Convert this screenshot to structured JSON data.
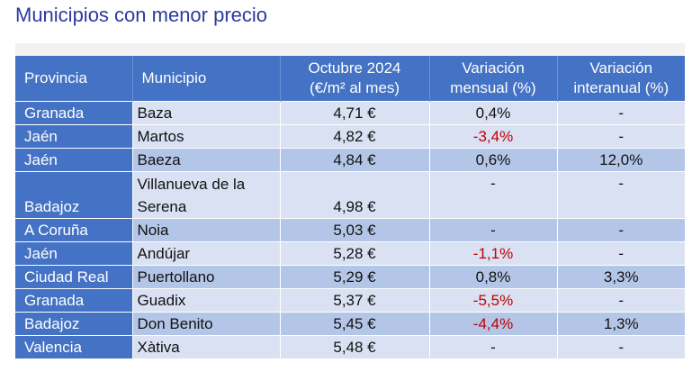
{
  "title": "Municipios con menor precio",
  "headers": {
    "provincia": "Provincia",
    "municipio": "Municipio",
    "precio_l1": "Octubre 2024",
    "precio_l2": "(€/m² al mes)",
    "mensual_l1": "Variación",
    "mensual_l2": "mensual (%)",
    "interanual_l1": "Variación",
    "interanual_l2": "interanual (%)"
  },
  "rows": [
    {
      "provincia": "Granada",
      "municipio": "Baza",
      "precio": "4,71 €",
      "mensual": "0,4%",
      "interanual": "-"
    },
    {
      "provincia": "Jaén",
      "municipio": "Martos",
      "precio": "4,82 €",
      "mensual": "-3,4%",
      "interanual": "-"
    },
    {
      "provincia": "Jaén",
      "municipio": "Baeza",
      "precio": "4,84 €",
      "mensual": "0,6%",
      "interanual": "12,0%"
    },
    {
      "provincia": "Badajoz",
      "municipio_l1": "Villanueva de la",
      "municipio_l2": "Serena",
      "precio": "4,98 €",
      "mensual": "-",
      "interanual": "-"
    },
    {
      "provincia": "A Coruña",
      "municipio": "Noia",
      "precio": "5,03 €",
      "mensual": "-",
      "interanual": "-"
    },
    {
      "provincia": "Jaén",
      "municipio": "Andújar",
      "precio": "5,28 €",
      "mensual": "-1,1%",
      "interanual": "-"
    },
    {
      "provincia": "Ciudad Real",
      "municipio": "Puertollano",
      "precio": "5,29 €",
      "mensual": "0,8%",
      "interanual": "3,3%"
    },
    {
      "provincia": "Granada",
      "municipio": "Guadix",
      "precio": "5,37 €",
      "mensual": "-5,5%",
      "interanual": "-"
    },
    {
      "provincia": "Badajoz",
      "municipio": "Don Benito",
      "precio": "5,45 €",
      "mensual": "-4,4%",
      "interanual": "1,3%"
    },
    {
      "provincia": "Valencia",
      "municipio": "Xàtiva",
      "precio": "5,48 €",
      "mensual": "-",
      "interanual": "-"
    }
  ],
  "colors": {
    "title": "#2b3aa0",
    "header_bg": "#4472c4",
    "row_light": "#d9e1f2",
    "row_dark": "#b4c6e7",
    "negative": "#c00000"
  }
}
